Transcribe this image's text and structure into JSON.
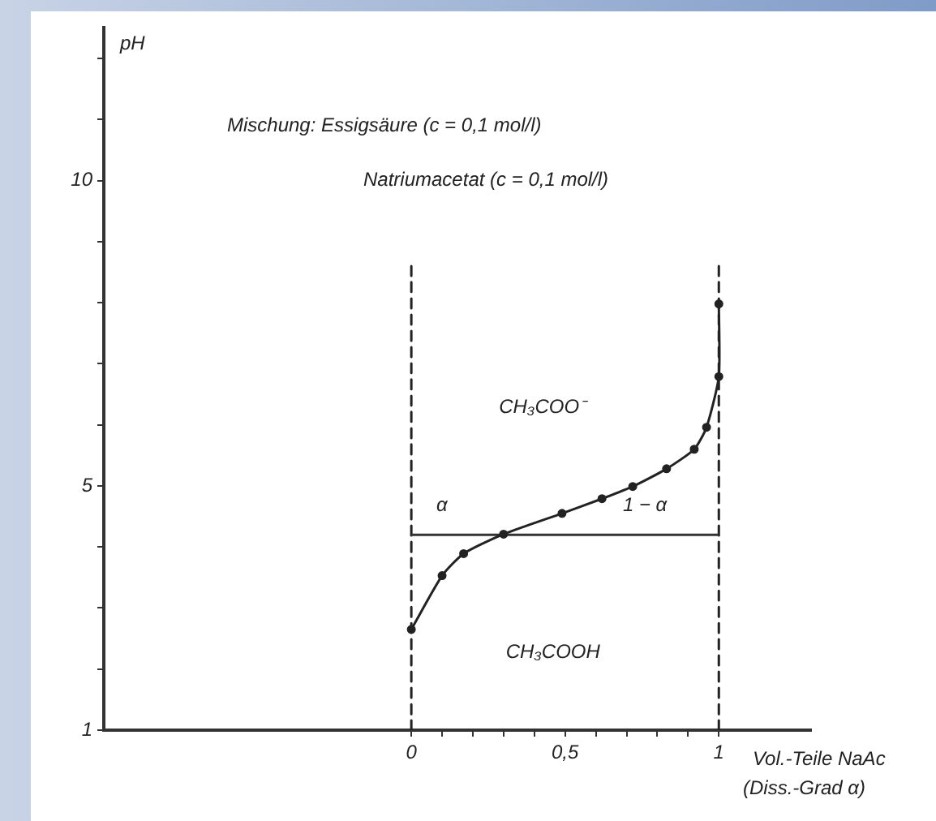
{
  "chart_data": {
    "type": "line",
    "title": "Mischung: Essigsäure (c = 0,1 mol/l)",
    "subtitle": "Natriumacetat (c = 0,1 mol/l)",
    "xlabel": "Vol.-Teile NaAc (Diss.-Grad α)",
    "ylabel": "pH",
    "xlim": [
      -1,
      1.3
    ],
    "ylim": [
      1,
      12.5
    ],
    "xticks": [
      0,
      {
        "value": 0.1,
        "label": null
      },
      {
        "value": 0.2,
        "label": null
      },
      {
        "value": 0.3,
        "label": null
      },
      {
        "value": 0.4,
        "label": null
      },
      {
        "value": 0.5,
        "label": "0,5"
      },
      {
        "value": 0.6,
        "label": null
      },
      {
        "value": 0.7,
        "label": null
      },
      {
        "value": 0.8,
        "label": null
      },
      {
        "value": 0.9,
        "label": null
      },
      1
    ],
    "yticks": [
      1,
      {
        "value": 2,
        "label": null
      },
      {
        "value": 3,
        "label": null
      },
      {
        "value": 4,
        "label": null
      },
      5,
      {
        "value": 6,
        "label": null
      },
      {
        "value": 7,
        "label": null
      },
      {
        "value": 8,
        "label": null
      },
      {
        "value": 9,
        "label": null
      },
      10,
      {
        "value": 11,
        "label": null
      },
      {
        "value": 12,
        "label": null
      }
    ],
    "grid": false,
    "legend": false,
    "series": [
      {
        "color": "#222222",
        "marker": "circle",
        "line_style": "solid",
        "x": [
          0,
          0.1,
          0.17,
          0.3,
          0.49,
          0.62,
          0.72,
          0.83,
          0.92,
          0.96,
          1,
          1
        ],
        "values": [
          2.65,
          3.53,
          3.89,
          4.21,
          4.55,
          4.79,
          4.99,
          5.28,
          5.6,
          5.96,
          6.79,
          7.98
        ]
      },
      {
        "color": "#333333",
        "marker": "none",
        "line_style": "solid",
        "x": [
          0,
          1
        ],
        "values": [
          4.2,
          4.2
        ]
      },
      {
        "color": "#222222",
        "marker": "none",
        "line_style": "dashed",
        "x": [
          0,
          0
        ],
        "values": [
          1,
          8.6
        ]
      },
      {
        "color": "#222222",
        "marker": "none",
        "line_style": "dashed",
        "x": [
          1,
          1
        ],
        "values": [
          1,
          8.6
        ]
      }
    ],
    "annotations": [
      "α",
      "1 − α",
      "CH₃COO⁻",
      "CH₃COOH"
    ]
  }
}
